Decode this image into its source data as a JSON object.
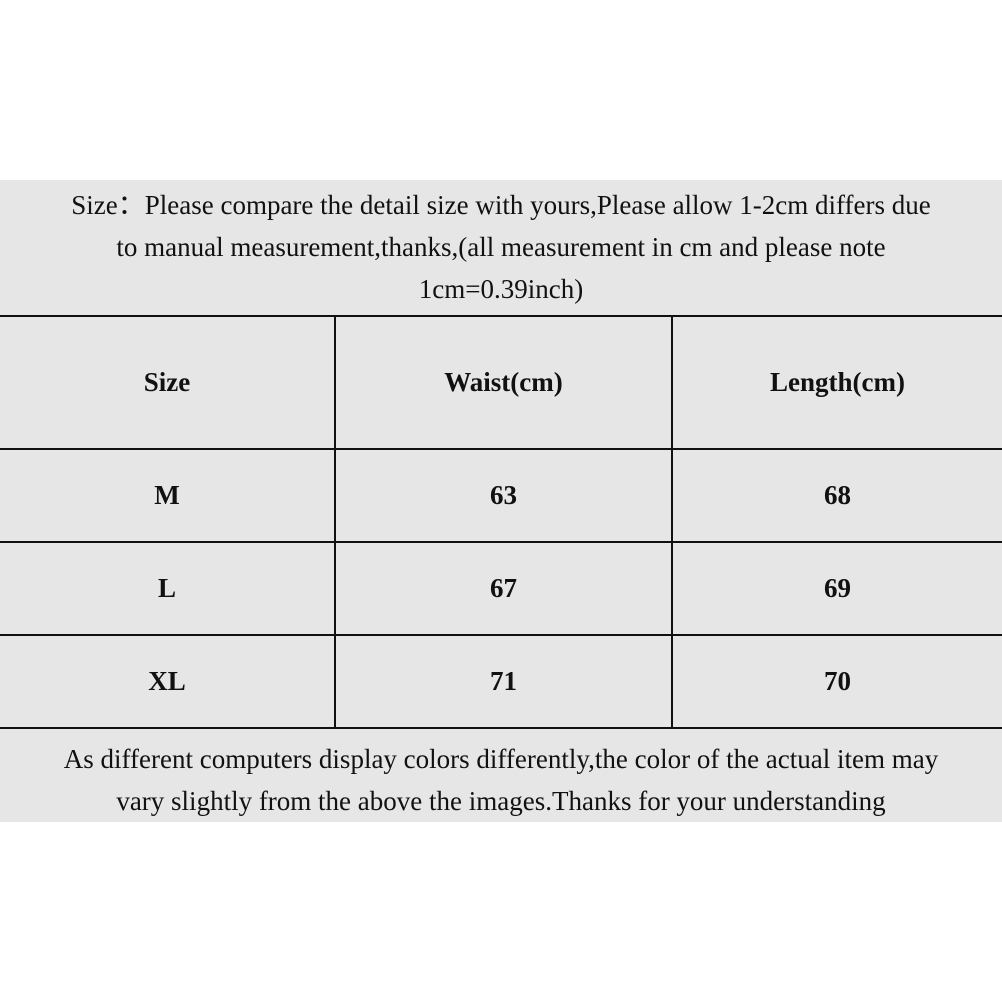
{
  "intro": {
    "line1": "Size：Please compare the detail size with yours,Please allow 1-2cm differs due",
    "line2": "to manual measurement,thanks,(all measurement in cm and please note",
    "line3": "1cm=0.39inch)"
  },
  "table": {
    "headers": [
      "Size",
      "Waist(cm)",
      "Length(cm)"
    ],
    "rows": [
      [
        "M",
        "63",
        "68"
      ],
      [
        "L",
        "67",
        "69"
      ],
      [
        "XL",
        "71",
        "70"
      ]
    ]
  },
  "outro": {
    "line1": "As different computers display colors differently,the color of the actual item may",
    "line2": "vary slightly from the above the images.Thanks for your understanding"
  }
}
